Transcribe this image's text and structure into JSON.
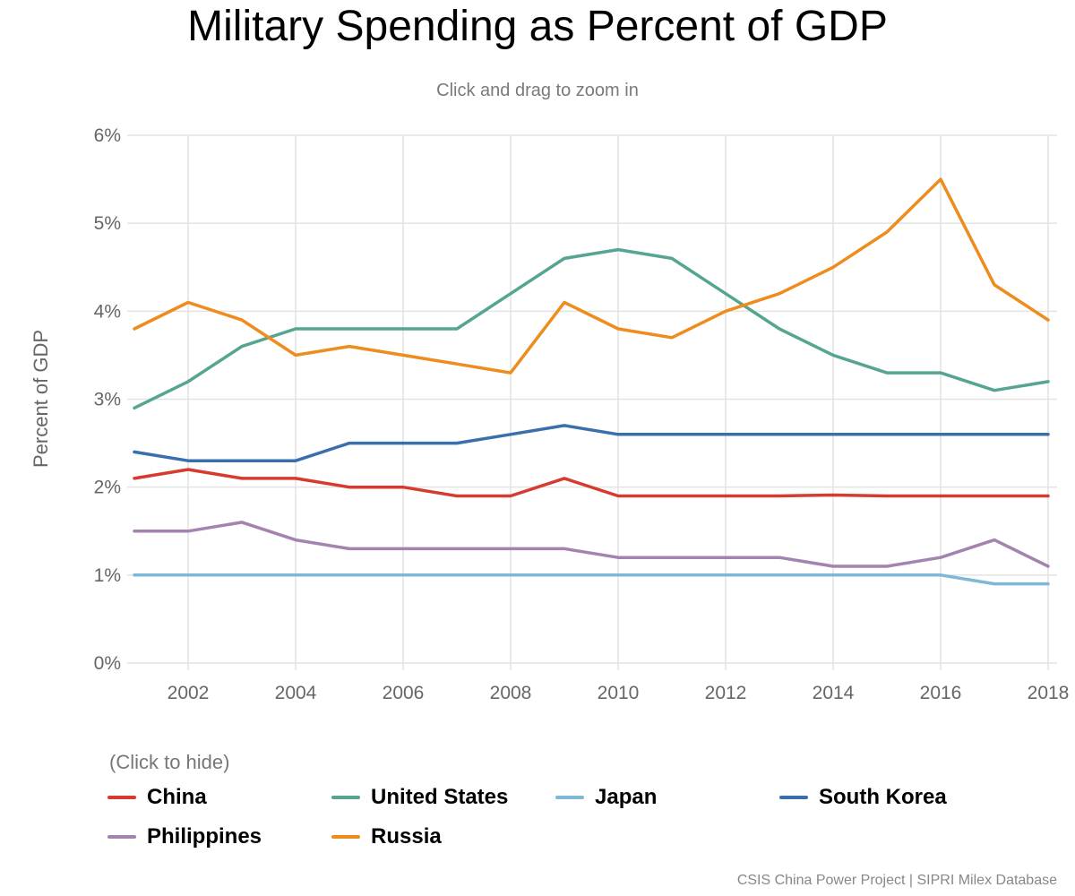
{
  "title": "Military Spending as Percent of GDP",
  "subtitle": "Click and drag to zoom in",
  "legend_hint": "(Click to hide)",
  "credit": "CSIS China Power Project | SIPRI Milex Database",
  "chart_data": {
    "type": "line",
    "title": "Military Spending as Percent of GDP",
    "xlabel": "",
    "ylabel": "Percent of GDP",
    "x": [
      2001,
      2002,
      2003,
      2004,
      2005,
      2006,
      2007,
      2008,
      2009,
      2010,
      2011,
      2012,
      2013,
      2014,
      2015,
      2016,
      2017,
      2018
    ],
    "xlim": [
      2001,
      2018
    ],
    "ylim": [
      0,
      6
    ],
    "x_ticks": [
      "2002",
      "2004",
      "2006",
      "2008",
      "2010",
      "2012",
      "2014",
      "2016",
      "2018"
    ],
    "y_ticks": [
      "0%",
      "1%",
      "2%",
      "3%",
      "4%",
      "5%",
      "6%"
    ],
    "grid": true,
    "legend_position": "bottom",
    "series": [
      {
        "name": "China",
        "color": "#d63b2f",
        "values": [
          2.1,
          2.2,
          2.1,
          2.1,
          2.0,
          2.0,
          1.9,
          1.9,
          2.1,
          1.9,
          1.9,
          1.9,
          1.9,
          1.91,
          1.9,
          1.9,
          1.9,
          1.9
        ]
      },
      {
        "name": "United States",
        "color": "#55a592",
        "values": [
          2.9,
          3.2,
          3.6,
          3.8,
          3.8,
          3.8,
          3.8,
          4.2,
          4.6,
          4.7,
          4.6,
          4.2,
          3.8,
          3.5,
          3.3,
          3.3,
          3.1,
          3.2
        ]
      },
      {
        "name": "Japan",
        "color": "#7fb8d6",
        "values": [
          1.0,
          1.0,
          1.0,
          1.0,
          1.0,
          1.0,
          1.0,
          1.0,
          1.0,
          1.0,
          1.0,
          1.0,
          1.0,
          1.0,
          1.0,
          1.0,
          0.9,
          0.9
        ]
      },
      {
        "name": "South Korea",
        "color": "#3a6fad",
        "values": [
          2.4,
          2.3,
          2.3,
          2.3,
          2.5,
          2.5,
          2.5,
          2.6,
          2.7,
          2.6,
          2.6,
          2.6,
          2.6,
          2.6,
          2.6,
          2.6,
          2.6,
          2.6
        ]
      },
      {
        "name": "Philippines",
        "color": "#a484ae",
        "values": [
          1.5,
          1.5,
          1.6,
          1.4,
          1.3,
          1.3,
          1.3,
          1.3,
          1.3,
          1.2,
          1.2,
          1.2,
          1.2,
          1.1,
          1.1,
          1.2,
          1.4,
          1.1
        ]
      },
      {
        "name": "Russia",
        "color": "#ee8c1e",
        "values": [
          3.8,
          4.1,
          3.9,
          3.5,
          3.6,
          3.5,
          3.4,
          3.3,
          4.1,
          3.8,
          3.7,
          4.0,
          4.2,
          4.5,
          4.9,
          5.5,
          4.3,
          3.9
        ]
      }
    ]
  }
}
